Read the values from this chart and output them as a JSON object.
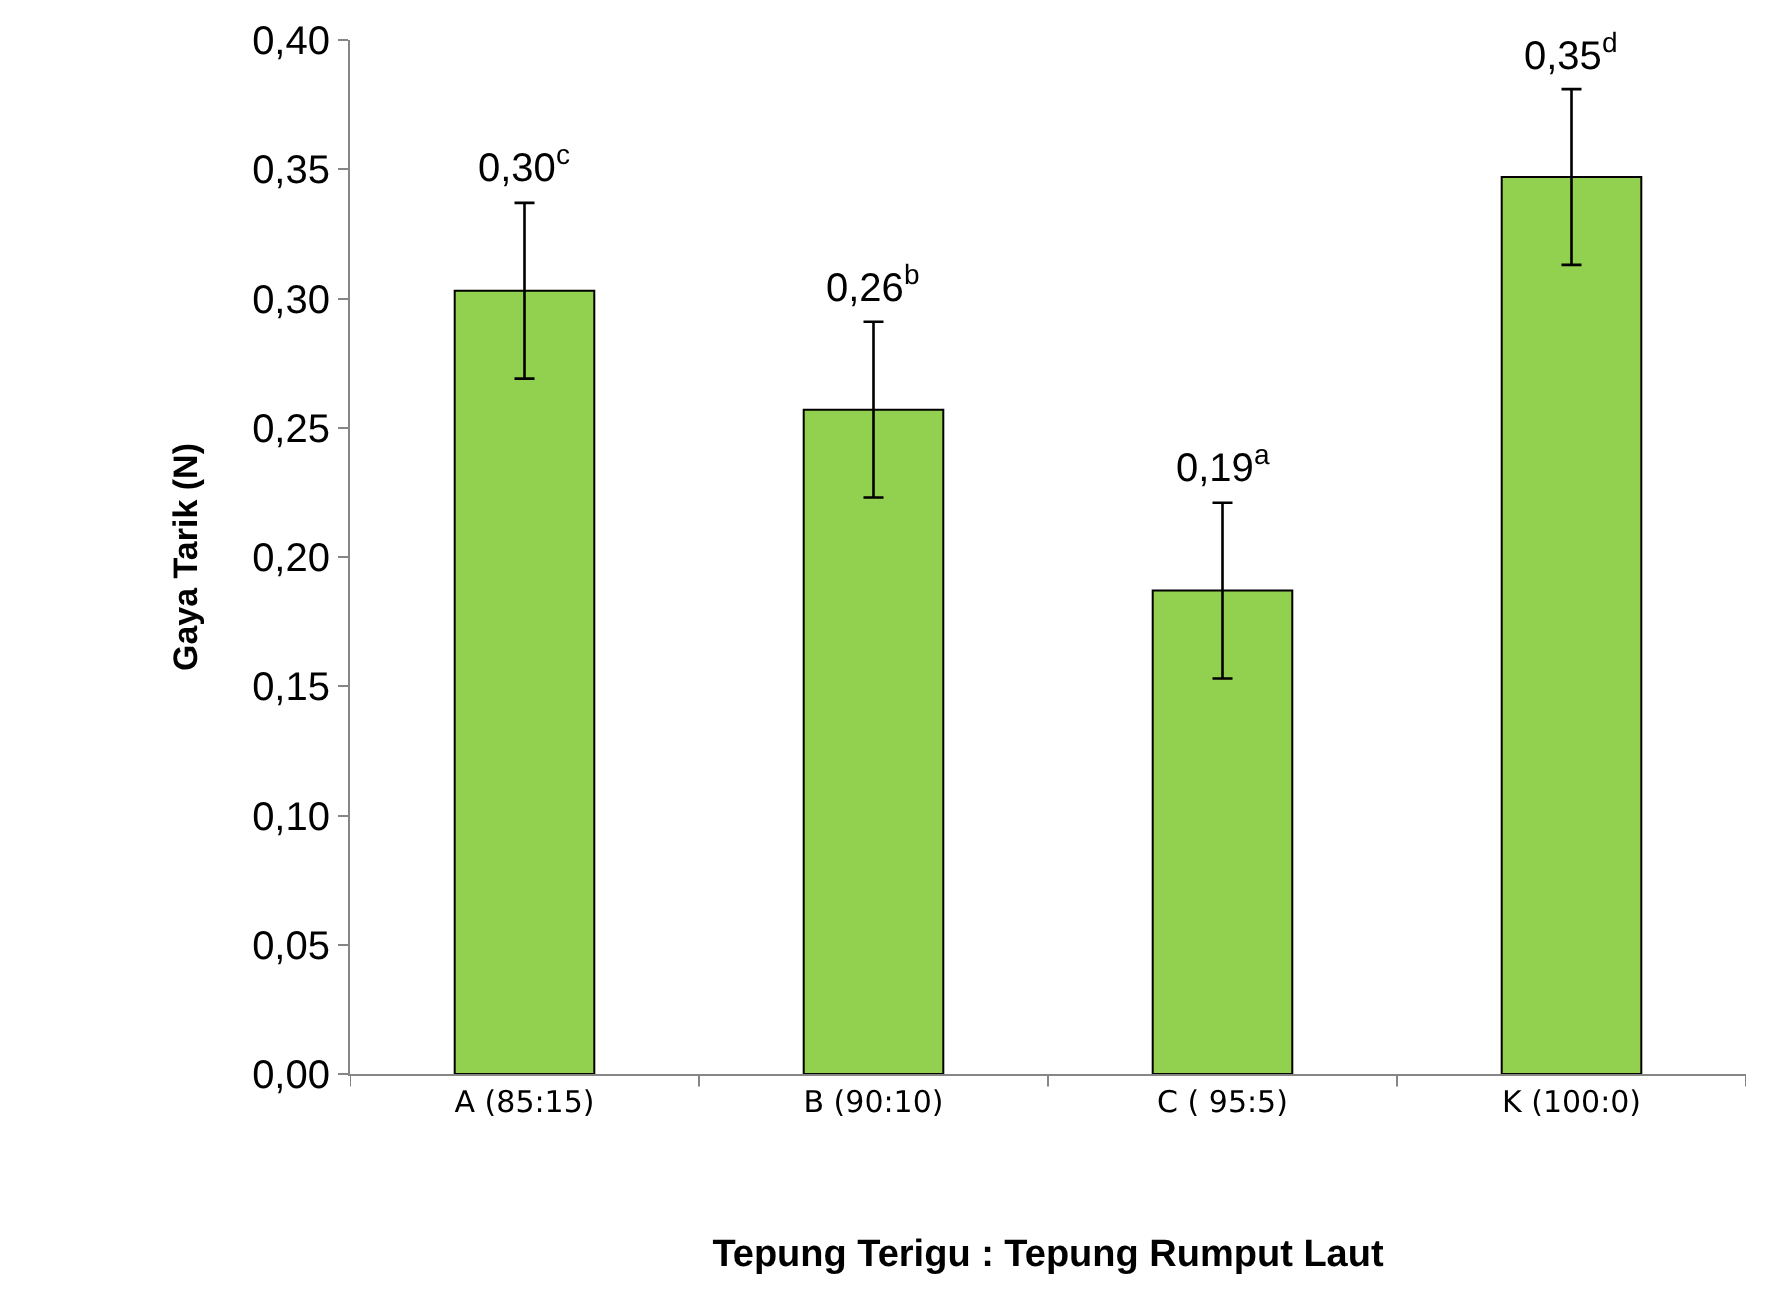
{
  "chart_data": {
    "type": "bar",
    "xlabel": "Tepung Terigu : Tepung Rumput Laut",
    "ylabel": "Gaya Tarik (N)",
    "categories": [
      "A (85:15)",
      "B (90:10)",
      "C ( 95:5)",
      "K (100:0)"
    ],
    "values": [
      0.303,
      0.257,
      0.187,
      0.347
    ],
    "errors": [
      0.034,
      0.034,
      0.034,
      0.034
    ],
    "value_labels": [
      "0,30$^{c}$",
      "0,26$^{b}$",
      "0,19$^{a}$",
      "0,35$^{d}$"
    ],
    "color": "#92d050",
    "ylim": [
      0,
      0.4
    ],
    "yticks": [
      {
        "value": 0,
        "label": "0,00"
      },
      {
        "value": 0.05,
        "label": "0,05"
      },
      {
        "value": 0.1,
        "label": "0,10"
      },
      {
        "value": 0.15,
        "label": "0,15"
      },
      {
        "value": 0.2,
        "label": "0,20"
      },
      {
        "value": 0.25,
        "label": "0,25"
      },
      {
        "value": 0.3,
        "label": "0,30"
      },
      {
        "value": 0.35,
        "label": "0,35"
      },
      {
        "value": 0.4,
        "label": "0,40"
      }
    ],
    "grid": false
  }
}
